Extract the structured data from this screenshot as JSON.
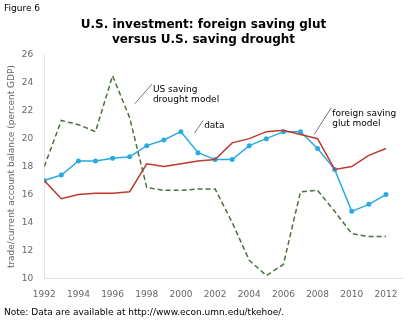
{
  "chart_data": {
    "type": "line",
    "title": "U.S. investment: foreign saving glut\nversus U.S. saving drought",
    "figure_label": "Figure 6",
    "note": "Note: Data are available at http://www.econ.umn.edu/tkehoe/.",
    "y_label": "trade/current account balance (percent GDP)",
    "x": [
      1992,
      1993,
      1994,
      1995,
      1996,
      1997,
      1998,
      1999,
      2000,
      2001,
      2002,
      2003,
      2004,
      2005,
      2006,
      2007,
      2008,
      2009,
      2010,
      2011,
      2012
    ],
    "series": [
      {
        "name": "US saving drought model",
        "color": "#4a7040",
        "line_style": "dashed",
        "values": [
          18.0,
          21.3,
          21.0,
          20.5,
          24.5,
          21.5,
          16.5,
          16.3,
          16.3,
          16.4,
          16.4,
          14.0,
          11.3,
          10.2,
          11.0,
          16.2,
          16.3,
          14.8,
          13.2,
          13.0,
          13.0
        ]
      },
      {
        "name": "foreign saving glut model",
        "color": "#c0392b",
        "line_style": "solid",
        "values": [
          17.0,
          15.7,
          16.0,
          16.1,
          16.1,
          16.2,
          18.2,
          18.0,
          18.2,
          18.4,
          18.5,
          19.7,
          20.0,
          20.5,
          20.6,
          20.3,
          20.0,
          17.8,
          18.0,
          18.8,
          19.3
        ]
      },
      {
        "name": "data",
        "color": "#29ABE2",
        "line_style": "solid",
        "marker": "o",
        "values": [
          17.0,
          17.4,
          18.4,
          18.4,
          18.6,
          18.7,
          19.5,
          19.9,
          20.5,
          19.0,
          18.5,
          18.5,
          19.5,
          20.0,
          20.5,
          20.5,
          19.3,
          17.8,
          14.8,
          15.3,
          16.0
        ]
      }
    ],
    "xlim": [
      1992,
      2013
    ],
    "xticks": [
      1992,
      1994,
      1996,
      1998,
      2000,
      2002,
      2004,
      2006,
      2008,
      2010,
      2012
    ],
    "ylim": [
      10,
      26
    ],
    "yticks": [
      10,
      12,
      14,
      16,
      18,
      20,
      22,
      24,
      26
    ],
    "grid": false,
    "legend": false,
    "annotations": [
      {
        "text": "US saving\ndrought model",
        "x": 1998.3,
        "y": 23.9,
        "point_x": 1997.3,
        "point_y": 22.5
      },
      {
        "text": "data",
        "x": 2001.3,
        "y": 21.3,
        "point_x": 2000.8,
        "point_y": 20.4
      },
      {
        "text": "foreign saving\nglut model",
        "x": 2008.8,
        "y": 22.2,
        "point_x": 2007.8,
        "point_y": 20.3
      }
    ]
  }
}
